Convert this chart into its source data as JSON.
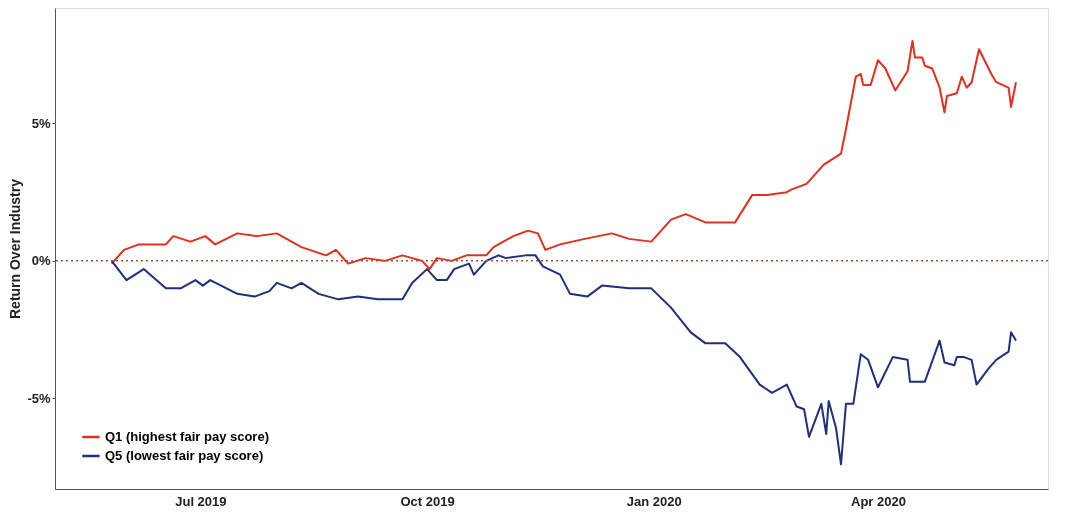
{
  "chart_data": {
    "type": "line",
    "ylabel": "Return Over Industry",
    "xlim": [
      "2019-05-03",
      "2020-06-09"
    ],
    "xticks": [
      {
        "value": "2019-07-01",
        "label": "Jul 2019"
      },
      {
        "value": "2019-10-01",
        "label": "Oct 2019"
      },
      {
        "value": "2020-01-01",
        "label": "Jan 2020"
      },
      {
        "value": "2020-04-01",
        "label": "Apr 2020"
      }
    ],
    "ylim": [
      -8.3,
      9.2
    ],
    "yticks": [
      {
        "value": -5,
        "label": "-5%"
      },
      {
        "value": 0,
        "label": "0%"
      },
      {
        "value": 5,
        "label": "5%"
      }
    ],
    "grid": false,
    "legend": "bottom left",
    "marker": "none",
    "line_style": "solid",
    "ref_lines": [
      {
        "axis": "y",
        "value": 0,
        "label": null,
        "color": "#a0523c",
        "line_style": "dotted"
      }
    ],
    "series": [
      {
        "name": "Q1 (highest fair pay score)",
        "color": "#e0301e",
        "x": [
          "2019-05-26",
          "2019-05-31",
          "2019-06-06",
          "2019-06-17",
          "2019-06-20",
          "2019-06-27",
          "2019-07-03",
          "2019-07-07",
          "2019-07-16",
          "2019-07-24",
          "2019-08-01",
          "2019-08-11",
          "2019-08-21",
          "2019-08-25",
          "2019-08-30",
          "2019-09-06",
          "2019-09-14",
          "2019-09-21",
          "2019-09-29",
          "2019-10-02",
          "2019-10-05",
          "2019-10-11",
          "2019-10-17",
          "2019-10-25",
          "2019-10-28",
          "2019-11-05",
          "2019-11-11",
          "2019-11-15",
          "2019-11-18",
          "2019-11-24",
          "2019-12-04",
          "2019-12-15",
          "2019-12-22",
          "2019-12-31",
          "2020-01-08",
          "2020-01-14",
          "2020-01-22",
          "2020-02-03",
          "2020-02-10",
          "2020-02-16",
          "2020-02-24",
          "2020-02-26",
          "2020-03-03",
          "2020-03-10",
          "2020-03-17",
          "2020-03-19",
          "2020-03-23",
          "2020-03-25",
          "2020-03-26",
          "2020-03-29",
          "2020-04-01",
          "2020-04-04",
          "2020-04-08",
          "2020-04-13",
          "2020-04-15",
          "2020-04-16",
          "2020-04-19",
          "2020-04-20",
          "2020-04-23",
          "2020-04-26",
          "2020-04-28",
          "2020-04-29",
          "2020-05-03",
          "2020-05-05",
          "2020-05-07",
          "2020-05-09",
          "2020-05-12",
          "2020-05-17",
          "2020-05-19",
          "2020-05-24",
          "2020-05-25",
          "2020-05-27"
        ],
        "values": [
          -0.1,
          0.4,
          0.6,
          0.6,
          0.9,
          0.7,
          0.9,
          0.6,
          1.0,
          0.9,
          1.0,
          0.5,
          0.2,
          0.4,
          -0.1,
          0.1,
          0.0,
          0.2,
          0.0,
          -0.3,
          0.1,
          0.0,
          0.2,
          0.2,
          0.5,
          0.9,
          1.1,
          1.0,
          0.4,
          0.6,
          0.8,
          1.0,
          0.8,
          0.7,
          1.5,
          1.7,
          1.4,
          1.4,
          2.4,
          2.4,
          2.5,
          2.6,
          2.8,
          3.5,
          3.9,
          4.8,
          6.7,
          6.8,
          6.4,
          6.4,
          7.3,
          7.0,
          6.2,
          6.9,
          8.0,
          7.4,
          7.4,
          7.1,
          7.0,
          6.3,
          5.4,
          6.0,
          6.1,
          6.7,
          6.3,
          6.5,
          7.7,
          6.8,
          6.5,
          6.3,
          5.6,
          6.5
        ]
      },
      {
        "name": "Q5 (lowest fair pay score)",
        "color": "#1f2f80",
        "x": [
          "2019-05-26",
          "2019-06-01",
          "2019-06-08",
          "2019-06-17",
          "2019-06-23",
          "2019-06-29",
          "2019-07-02",
          "2019-07-05",
          "2019-07-16",
          "2019-07-23",
          "2019-07-29",
          "2019-08-01",
          "2019-08-07",
          "2019-08-11",
          "2019-08-18",
          "2019-08-26",
          "2019-09-03",
          "2019-09-11",
          "2019-09-21",
          "2019-09-25",
          "2019-10-01",
          "2019-10-05",
          "2019-10-09",
          "2019-10-12",
          "2019-10-18",
          "2019-10-20",
          "2019-10-25",
          "2019-10-30",
          "2019-11-02",
          "2019-11-10",
          "2019-11-14",
          "2019-11-17",
          "2019-11-24",
          "2019-11-28",
          "2019-12-05",
          "2019-12-11",
          "2019-12-22",
          "2019-12-31",
          "2020-01-08",
          "2020-01-16",
          "2020-01-22",
          "2020-01-30",
          "2020-02-05",
          "2020-02-13",
          "2020-02-18",
          "2020-02-24",
          "2020-02-28",
          "2020-03-02",
          "2020-03-04",
          "2020-03-09",
          "2020-03-11",
          "2020-03-12",
          "2020-03-15",
          "2020-03-17",
          "2020-03-19",
          "2020-03-22",
          "2020-03-25",
          "2020-03-28",
          "2020-04-01",
          "2020-04-07",
          "2020-04-13",
          "2020-04-14",
          "2020-04-20",
          "2020-04-26",
          "2020-04-28",
          "2020-05-02",
          "2020-05-03",
          "2020-05-06",
          "2020-05-09",
          "2020-05-11",
          "2020-05-16",
          "2020-05-19",
          "2020-05-24",
          "2020-05-25",
          "2020-05-27"
        ],
        "values": [
          0.0,
          -0.7,
          -0.3,
          -1.0,
          -1.0,
          -0.7,
          -0.9,
          -0.7,
          -1.2,
          -1.3,
          -1.1,
          -0.8,
          -1.0,
          -0.8,
          -1.2,
          -1.4,
          -1.3,
          -1.4,
          -1.4,
          -0.8,
          -0.3,
          -0.7,
          -0.7,
          -0.3,
          -0.1,
          -0.5,
          0.0,
          0.2,
          0.1,
          0.2,
          0.2,
          -0.2,
          -0.5,
          -1.2,
          -1.3,
          -0.9,
          -1.0,
          -1.0,
          -1.7,
          -2.6,
          -3.0,
          -3.0,
          -3.5,
          -4.5,
          -4.8,
          -4.5,
          -5.3,
          -5.4,
          -6.4,
          -5.2,
          -6.3,
          -5.1,
          -6.1,
          -7.4,
          -5.2,
          -5.2,
          -3.4,
          -3.6,
          -4.6,
          -3.5,
          -3.6,
          -4.4,
          -4.4,
          -2.9,
          -3.7,
          -3.8,
          -3.5,
          -3.5,
          -3.6,
          -4.5,
          -3.9,
          -3.6,
          -3.3,
          -2.6,
          -2.9
        ]
      }
    ]
  }
}
